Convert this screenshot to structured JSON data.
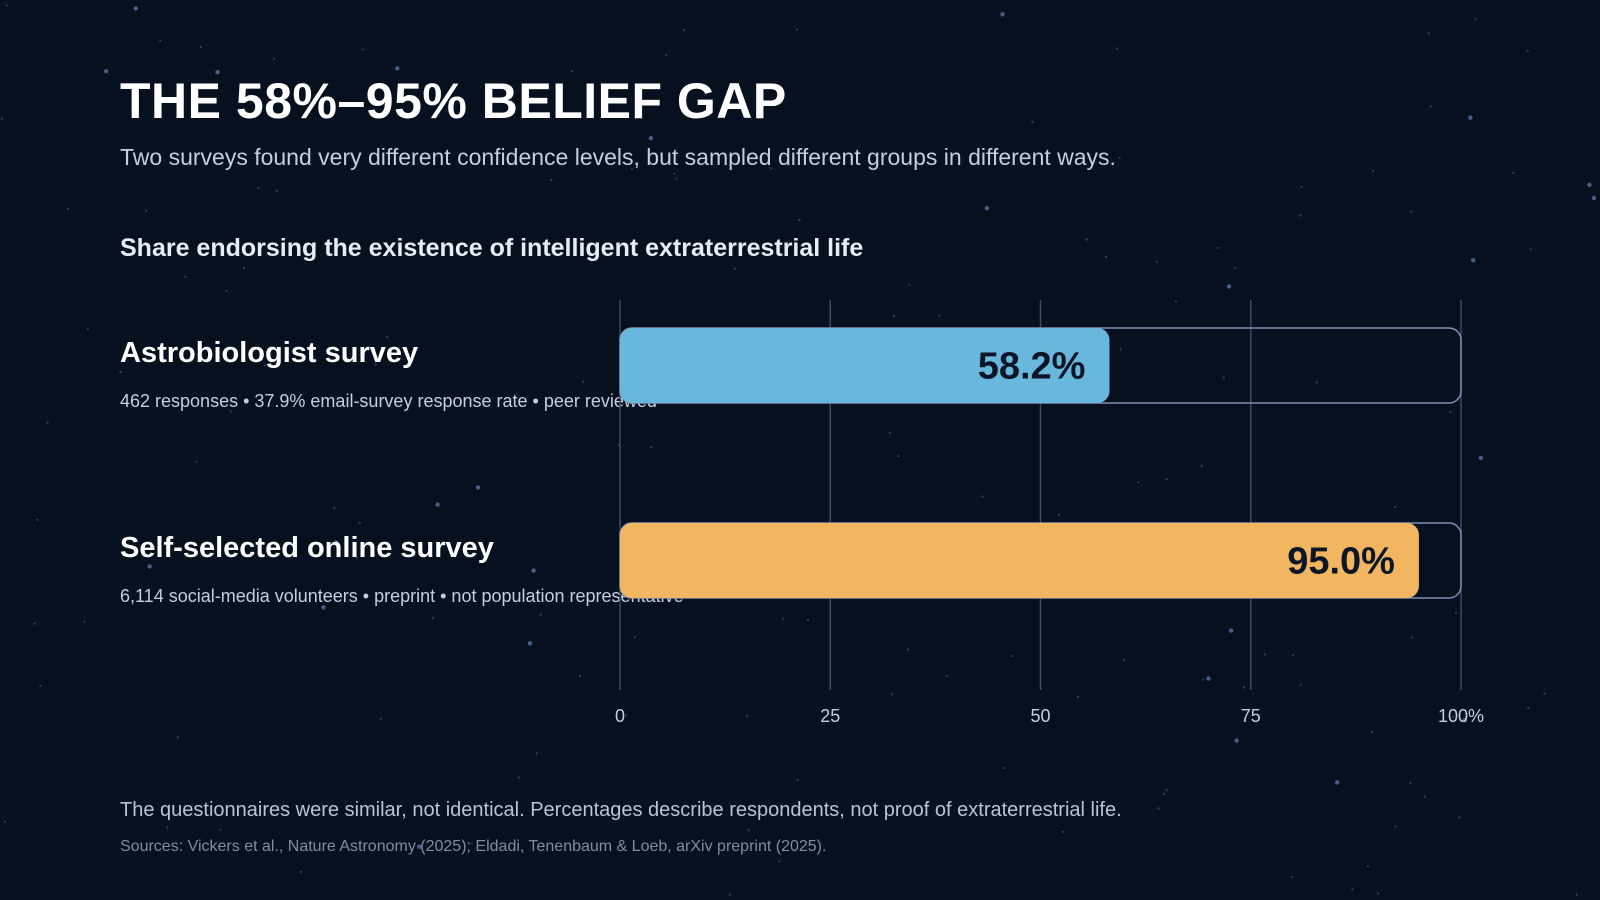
{
  "title": "THE 58%–95% BELIEF GAP",
  "subtitle": "Two surveys found very different confidence levels, but sampled different groups in different ways.",
  "colors": {
    "background": "#07101f",
    "astrobiologist_bar": "#6ab7dd",
    "online_bar": "#f3b660",
    "track_border": "#7d8fb0",
    "gridline": "#3a4a68",
    "value_label": "#0c1628"
  },
  "chart_data": {
    "type": "bar",
    "orientation": "horizontal",
    "title": "Share endorsing the existence of intelligent extraterrestrial life",
    "categories": [
      "Astrobiologist survey",
      "Self-selected online survey"
    ],
    "details": [
      "462 responses • 37.9% email-survey response rate • peer reviewed",
      "6,114 social-media volunteers • preprint • not population representative"
    ],
    "values": [
      58.2,
      95.0
    ],
    "value_labels": [
      "58.2%",
      "95.0%"
    ],
    "xlim": [
      0,
      100
    ],
    "ticks": [
      0,
      25,
      50,
      75,
      100
    ],
    "tick_labels": [
      "0",
      "25",
      "50",
      "75",
      "100%"
    ],
    "grid": true
  },
  "footnote": "The questionnaires were similar, not identical. Percentages describe respondents, not proof of extraterrestrial life.",
  "sources": "Sources: Vickers et al., Nature Astronomy (2025); Eldadi, Tenenbaum & Loeb, arXiv preprint (2025)."
}
